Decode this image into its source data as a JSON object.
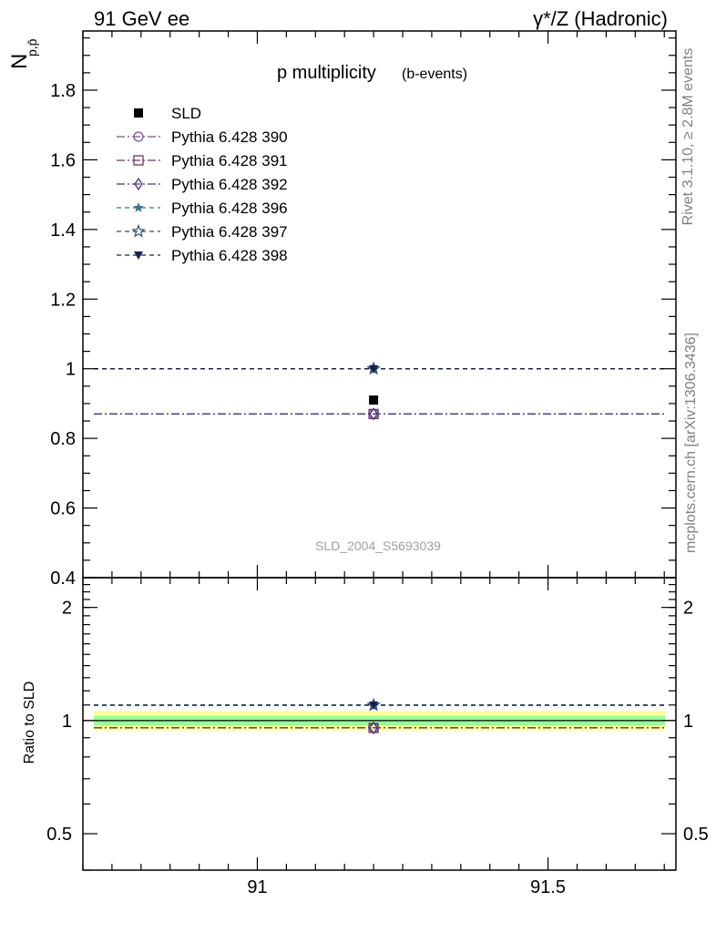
{
  "header": {
    "left": "91 GeV ee",
    "right": "γ*/Z (Hadronic)"
  },
  "side_labels": {
    "rivet": "Rivet 3.1.10, ≥ 2.8M events",
    "mcplots": "mcplots.cern.ch [arXiv:1306.3436]"
  },
  "watermark": "SLD_2004_S5693039",
  "title": {
    "main": "p multiplicity",
    "sub": "(b-events)"
  },
  "ylabel_main": "N",
  "ylabel_main_sub": "p,p̄",
  "ylabel_ratio": "Ratio to SLD",
  "colors": {
    "sld": "#000000",
    "p390": "#7b4f8f",
    "p391": "#6b3a5f",
    "p392": "#4a3580",
    "p396": "#3f6f87",
    "p397": "#2e4e77",
    "p398": "#1a1f4a",
    "band_green": "#9aff9a",
    "band_yellow": "#ffff99"
  },
  "chart_data": [
    {
      "type": "scatter",
      "panel": "main",
      "title": "p multiplicity (b-events)",
      "xlim": [
        90.7,
        91.72
      ],
      "ylim": [
        0.4,
        1.97
      ],
      "y_ticks": [
        0.4,
        0.6,
        0.8,
        1,
        1.2,
        1.4,
        1.6,
        1.8
      ],
      "y_tick_labels": [
        "0.4",
        "0.6",
        "0.8",
        "1",
        "1.2",
        "1.4",
        "1.6",
        "1.8"
      ],
      "legend_position": "top-left",
      "series": [
        {
          "name": "SLD",
          "x": [
            91.2
          ],
          "y": [
            0.91
          ],
          "marker": "square-filled",
          "line": "none"
        },
        {
          "name": "Pythia 6.428 390",
          "x": [
            91.2
          ],
          "y": [
            0.87
          ],
          "marker": "circle-open",
          "line": "dashdot"
        },
        {
          "name": "Pythia 6.428 391",
          "x": [
            91.2
          ],
          "y": [
            0.87
          ],
          "marker": "square-open",
          "line": "dashdot"
        },
        {
          "name": "Pythia 6.428 392",
          "x": [
            91.2
          ],
          "y": [
            0.87
          ],
          "marker": "diamond-open",
          "line": "dashdot"
        },
        {
          "name": "Pythia 6.428 396",
          "x": [
            91.2
          ],
          "y": [
            1.0
          ],
          "marker": "star-filled",
          "line": "dashed"
        },
        {
          "name": "Pythia 6.428 397",
          "x": [
            91.2
          ],
          "y": [
            1.0
          ],
          "marker": "star-open",
          "line": "dashed"
        },
        {
          "name": "Pythia 6.428 398",
          "x": [
            91.2
          ],
          "y": [
            1.0
          ],
          "marker": "triangle-down-filled",
          "line": "dashed"
        }
      ]
    },
    {
      "type": "scatter",
      "panel": "ratio",
      "xlabel": "",
      "ylabel": "Ratio to SLD",
      "xlim": [
        90.7,
        91.72
      ],
      "ylim": [
        0.4,
        2.4
      ],
      "x_ticks": [
        91,
        91.5
      ],
      "x_tick_labels": [
        "91",
        "91.5"
      ],
      "y_ticks": [
        0.5,
        1,
        2
      ],
      "y_tick_labels": [
        "0.5",
        "1",
        "2"
      ],
      "bands": {
        "green": [
          0.97,
          1.03
        ],
        "yellow": [
          0.94,
          1.06
        ]
      },
      "series": [
        {
          "name": "Pythia 6.428 390",
          "x": [
            91.2
          ],
          "y": [
            0.956
          ]
        },
        {
          "name": "Pythia 6.428 391",
          "x": [
            91.2
          ],
          "y": [
            0.956
          ]
        },
        {
          "name": "Pythia 6.428 392",
          "x": [
            91.2
          ],
          "y": [
            0.956
          ]
        },
        {
          "name": "Pythia 6.428 396",
          "x": [
            91.2
          ],
          "y": [
            1.099
          ]
        },
        {
          "name": "Pythia 6.428 397",
          "x": [
            91.2
          ],
          "y": [
            1.099
          ]
        },
        {
          "name": "Pythia 6.428 398",
          "x": [
            91.2
          ],
          "y": [
            1.099
          ]
        }
      ]
    }
  ]
}
